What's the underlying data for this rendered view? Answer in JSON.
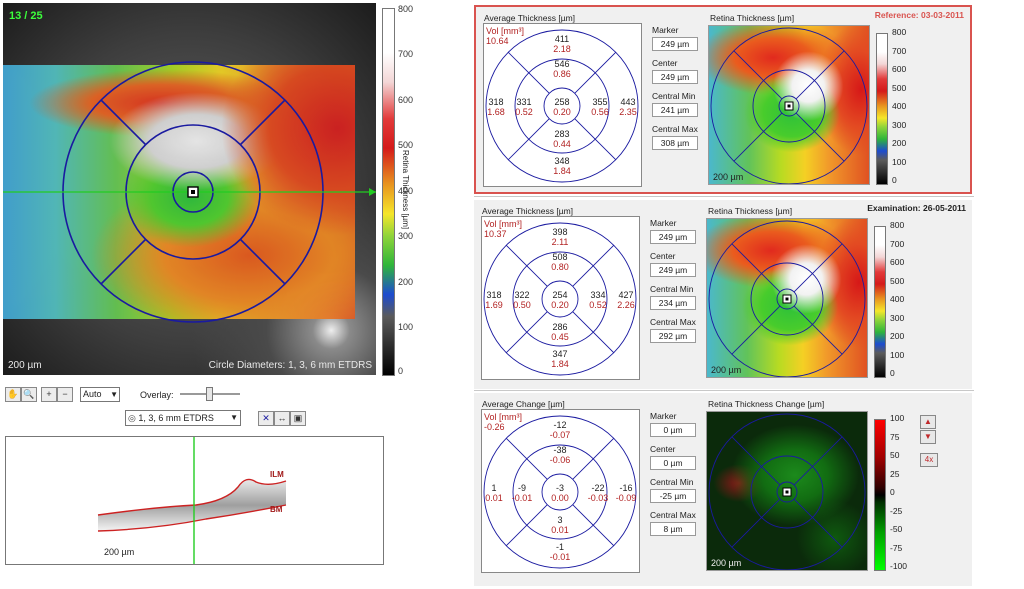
{
  "left_view": {
    "slice_counter": "13 / 25",
    "circle_diameters": "Circle Diameters: 1, 3, 6 mm ETDRS",
    "scale": "200 µm",
    "colorbar_title": "Retina Thickness [µm]",
    "colorbar_ticks": [
      "800",
      "700",
      "600",
      "500",
      "400",
      "300",
      "200",
      "100",
      "0"
    ]
  },
  "toolbar": {
    "zoom_select": "Auto",
    "overlay_label": "Overlay:",
    "etdrs_select": "1, 3, 6 mm ETDRS"
  },
  "bscan": {
    "scale": "200 µm",
    "ilm_label": "ILM",
    "bm_label": "BM"
  },
  "panels": [
    {
      "id": "reference",
      "header": "Reference: 03-03-2011",
      "etdrs_title": "Average Thickness [µm]",
      "vol_label": "Vol [mm³]",
      "vol_value": "10.64",
      "sectors": {
        "outer_top": [
          "411",
          "2.18"
        ],
        "inner_top": [
          "546",
          "0.86"
        ],
        "outer_left": [
          "318",
          "1.68"
        ],
        "inner_left": [
          "331",
          "0.52"
        ],
        "center": [
          "258",
          "0.20"
        ],
        "inner_right": [
          "355",
          "0.56"
        ],
        "outer_right": [
          "443",
          "2.35"
        ],
        "inner_bottom": [
          "283",
          "0.44"
        ],
        "outer_bottom": [
          "348",
          "1.84"
        ]
      },
      "stats": [
        {
          "label": "Marker",
          "value": "249 µm"
        },
        {
          "label": "Center",
          "value": "249 µm"
        },
        {
          "label": "Central Min",
          "value": "241 µm"
        },
        {
          "label": "Central Max",
          "value": "308 µm"
        }
      ],
      "map_title": "Retina Thickness [µm]",
      "map_scale": "200 µm",
      "colorbar_ticks": [
        "800",
        "700",
        "600",
        "500",
        "400",
        "300",
        "200",
        "100",
        "0"
      ]
    },
    {
      "id": "examination",
      "header": "Examination: 26-05-2011",
      "etdrs_title": "Average Thickness [µm]",
      "vol_label": "Vol [mm³]",
      "vol_value": "10.37",
      "sectors": {
        "outer_top": [
          "398",
          "2.11"
        ],
        "inner_top": [
          "508",
          "0.80"
        ],
        "outer_left": [
          "318",
          "1.69"
        ],
        "inner_left": [
          "322",
          "0.50"
        ],
        "center": [
          "254",
          "0.20"
        ],
        "inner_right": [
          "334",
          "0.52"
        ],
        "outer_right": [
          "427",
          "2.26"
        ],
        "inner_bottom": [
          "286",
          "0.45"
        ],
        "outer_bottom": [
          "347",
          "1.84"
        ]
      },
      "stats": [
        {
          "label": "Marker",
          "value": "249 µm"
        },
        {
          "label": "Center",
          "value": "249 µm"
        },
        {
          "label": "Central Min",
          "value": "234 µm"
        },
        {
          "label": "Central Max",
          "value": "292 µm"
        }
      ],
      "map_title": "Retina Thickness [µm]",
      "map_scale": "200 µm",
      "colorbar_ticks": [
        "800",
        "700",
        "600",
        "500",
        "400",
        "300",
        "200",
        "100",
        "0"
      ]
    },
    {
      "id": "change",
      "header": "",
      "etdrs_title": "Average Change [µm]",
      "vol_label": "Vol [mm³]",
      "vol_value": "-0.26",
      "sectors": {
        "outer_top": [
          "-12",
          "-0.07"
        ],
        "inner_top": [
          "-38",
          "-0.06"
        ],
        "outer_left": [
          "1",
          "0.01"
        ],
        "inner_left": [
          "-9",
          "-0.01"
        ],
        "center": [
          "-3",
          "0.00"
        ],
        "inner_right": [
          "-22",
          "-0.03"
        ],
        "outer_right": [
          "-16",
          "-0.09"
        ],
        "inner_bottom": [
          "3",
          "0.01"
        ],
        "outer_bottom": [
          "-1",
          "-0.01"
        ]
      },
      "stats": [
        {
          "label": "Marker",
          "value": "0 µm"
        },
        {
          "label": "Center",
          "value": "0 µm"
        },
        {
          "label": "Central Min",
          "value": "-25 µm"
        },
        {
          "label": "Central Max",
          "value": "8 µm"
        }
      ],
      "map_title": "Retina Thickness Change [µm]",
      "map_scale": "200 µm",
      "colorbar_ticks": [
        "100",
        "75",
        "50",
        "25",
        "0",
        "-25",
        "-50",
        "-75",
        "-100"
      ],
      "zoom_button": "4x"
    }
  ],
  "colors": {
    "reference_border": "#d9534f",
    "vol_text": "#b22222",
    "grid_blue": "#1a1aa0",
    "marker_line": "#22cc22"
  }
}
